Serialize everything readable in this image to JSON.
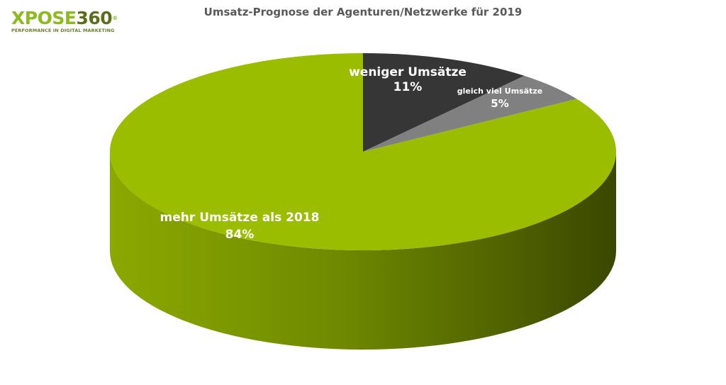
{
  "logo": {
    "brand_a": "XPOSE",
    "brand_b": "360",
    "mark": "®",
    "tagline": "PERFORMANCE IN DIGITAL MARKETING"
  },
  "chart_data": {
    "type": "pie",
    "title": "Umsatz-Prognose der Agenturen/Netzwerke für 2019",
    "style": "3d",
    "slices": [
      {
        "label": "weniger Umsätze",
        "value": 11,
        "display": "11%",
        "color": "#363636"
      },
      {
        "label": "gleich viel Umsätze",
        "value": 5,
        "display": "5%",
        "color": "#808080"
      },
      {
        "label": "mehr Umsätze als 2018",
        "value": 84,
        "display": "84%",
        "color": "#9bbd00"
      }
    ]
  }
}
